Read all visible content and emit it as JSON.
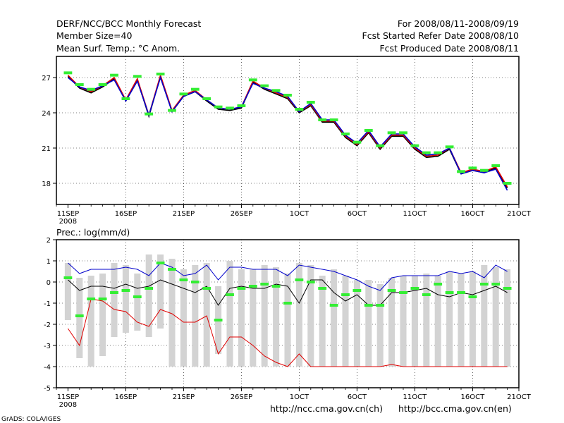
{
  "header": {
    "left": [
      "DERF/NCC/BCC Monthly Forecast",
      "Member Size=40",
      "Mean Surf. Temp.: °C Anom."
    ],
    "right": [
      "For 2008/08/11-2008/09/19",
      "Fcst Started Refer Date 2008/08/10",
      "Fcst Produced Date 2008/08/11"
    ]
  },
  "footer": {
    "credit": "GrADS: COLA/IGES",
    "url_ncc": "http://ncc.cma.gov.cn(ch)",
    "url_bcc": "http://bcc.cma.gov.cn(en)"
  },
  "colors": {
    "black": "#000000",
    "red": "#e00000",
    "blue": "#0000cc",
    "green": "#33ee33",
    "bar": "#d3d3d3"
  },
  "chart_data": [
    {
      "type": "line",
      "title": "Mean Surf. Temp.: °C Anom.",
      "xlabel": "",
      "ylabel": "",
      "x_tick_labels": [
        "11SEP",
        "16SEP",
        "21SEP",
        "26SEP",
        "1OCT",
        "6OCT",
        "11OCT",
        "16OCT",
        "21OCT"
      ],
      "x_tick_sublabel": "2008",
      "x_range": [
        0,
        40
      ],
      "ylim": [
        16.2,
        28.8
      ],
      "y_ticks": [
        18,
        21,
        24,
        27
      ],
      "grid": true,
      "x": [
        1,
        2,
        3,
        4,
        5,
        6,
        7,
        8,
        9,
        10,
        11,
        12,
        13,
        14,
        15,
        16,
        17,
        18,
        19,
        20,
        21,
        22,
        23,
        24,
        25,
        26,
        27,
        28,
        29,
        30,
        31,
        32,
        33,
        34,
        35,
        36,
        37,
        38,
        39
      ],
      "series": [
        {
          "name": "ensemble mean",
          "color": "black",
          "values": [
            27.1,
            26.1,
            25.7,
            26.2,
            26.9,
            25.0,
            26.8,
            23.7,
            27.1,
            24.1,
            25.4,
            25.8,
            25.0,
            24.3,
            24.2,
            24.4,
            26.6,
            26.0,
            25.6,
            25.2,
            24.0,
            24.6,
            23.2,
            23.2,
            21.9,
            21.2,
            22.3,
            20.9,
            22.0,
            22.0,
            20.9,
            20.2,
            20.3,
            20.9,
            18.8,
            19.1,
            18.9,
            19.3,
            17.6
          ]
        },
        {
          "name": "red member",
          "color": "red",
          "values": [
            27.2,
            26.2,
            25.8,
            26.3,
            27.0,
            25.1,
            26.9,
            23.8,
            27.2,
            24.2,
            25.5,
            25.9,
            25.1,
            24.4,
            24.3,
            24.5,
            26.7,
            26.1,
            25.7,
            25.3,
            24.1,
            24.7,
            23.3,
            23.3,
            22.0,
            21.3,
            22.4,
            21.0,
            22.1,
            22.1,
            21.0,
            20.3,
            20.4,
            21.0,
            18.9,
            19.2,
            19.0,
            19.4,
            17.7
          ]
        },
        {
          "name": "blue member",
          "color": "blue",
          "values": [
            27.0,
            26.2,
            25.9,
            26.3,
            26.8,
            25.0,
            26.7,
            23.8,
            27.0,
            24.1,
            25.4,
            25.8,
            25.1,
            24.4,
            24.3,
            24.5,
            26.5,
            26.1,
            25.8,
            25.4,
            24.1,
            24.8,
            23.4,
            23.4,
            22.1,
            21.4,
            22.5,
            21.1,
            22.2,
            22.2,
            21.1,
            20.4,
            20.5,
            21.0,
            18.8,
            19.1,
            18.9,
            19.2,
            17.4
          ]
        }
      ],
      "markers": {
        "name": "observed",
        "color": "green",
        "values": [
          27.4,
          26.4,
          26.0,
          26.4,
          27.2,
          25.2,
          27.1,
          23.9,
          27.3,
          24.2,
          25.6,
          26.0,
          25.2,
          24.5,
          24.4,
          24.6,
          26.8,
          26.3,
          25.9,
          25.5,
          24.3,
          24.9,
          23.4,
          23.4,
          22.2,
          21.5,
          22.5,
          21.2,
          22.3,
          22.3,
          21.2,
          20.6,
          20.6,
          21.1,
          19.0,
          19.3,
          19.1,
          19.5,
          18.0
        ]
      }
    },
    {
      "type": "bar",
      "title": "Prec.: log(mm/d)",
      "xlabel": "",
      "ylabel": "",
      "x_tick_labels": [
        "11SEP",
        "16SEP",
        "21SEP",
        "26SEP",
        "1OCT",
        "6OCT",
        "11OCT",
        "16OCT",
        "21OCT"
      ],
      "x_tick_sublabel": "2008",
      "x_range": [
        0,
        40
      ],
      "ylim": [
        -5,
        2
      ],
      "y_ticks": [
        -5,
        -4,
        -3,
        -2,
        -1,
        0,
        1,
        2
      ],
      "grid": true,
      "x": [
        1,
        2,
        3,
        4,
        5,
        6,
        7,
        8,
        9,
        10,
        11,
        12,
        13,
        14,
        15,
        16,
        17,
        18,
        19,
        20,
        21,
        22,
        23,
        24,
        25,
        26,
        27,
        28,
        29,
        30,
        31,
        32,
        33,
        34,
        35,
        36,
        37,
        38,
        39
      ],
      "bars": {
        "name": "ensemble spread",
        "low": [
          -1.8,
          -3.6,
          -4.0,
          -3.5,
          -2.6,
          -2.4,
          -2.3,
          -2.6,
          -2.2,
          -4.0,
          -4.0,
          -4.0,
          -4.0,
          -3.4,
          -4.0,
          -4.0,
          -4.0,
          -4.0,
          -4.0,
          -4.0,
          -4.0,
          -4.0,
          -4.0,
          -4.0,
          -4.0,
          -4.0,
          -4.0,
          -4.0,
          -4.0,
          -4.0,
          -4.0,
          -4.0,
          -4.0,
          -4.0,
          -4.0,
          -4.0,
          -4.0,
          -4.0,
          -4.0
        ],
        "high": [
          0.9,
          0.2,
          0.3,
          0.4,
          0.9,
          0.8,
          0.4,
          1.3,
          1.3,
          1.1,
          0.6,
          0.8,
          0.9,
          -0.2,
          1.0,
          0.6,
          0.6,
          0.8,
          0.7,
          0.4,
          0.9,
          0.8,
          0.3,
          0.6,
          0.3,
          0.1,
          0.1,
          -0.1,
          0.2,
          0.3,
          0.3,
          0.4,
          0.3,
          0.5,
          0.4,
          0.5,
          0.8,
          0.7,
          0.6
        ]
      },
      "series": [
        {
          "name": "ensemble mean",
          "color": "black",
          "values": [
            0.1,
            -0.4,
            -0.2,
            -0.2,
            -0.3,
            -0.1,
            -0.3,
            -0.2,
            0.1,
            -0.1,
            -0.3,
            -0.5,
            -0.2,
            -1.1,
            -0.3,
            -0.2,
            -0.3,
            -0.3,
            -0.1,
            -0.2,
            -1.0,
            0.1,
            0.1,
            -0.5,
            -0.9,
            -0.6,
            -1.1,
            -1.1,
            -0.5,
            -0.5,
            -0.4,
            -0.3,
            -0.6,
            -0.7,
            -0.5,
            -0.6,
            -0.4,
            -0.2,
            -0.5
          ]
        },
        {
          "name": "blue member",
          "color": "blue",
          "values": [
            0.9,
            0.4,
            0.6,
            0.6,
            0.6,
            0.7,
            0.6,
            0.3,
            0.9,
            0.7,
            0.3,
            0.4,
            0.8,
            0.1,
            0.7,
            0.7,
            0.6,
            0.6,
            0.6,
            0.3,
            0.8,
            0.7,
            0.6,
            0.5,
            0.3,
            0.1,
            -0.2,
            -0.4,
            0.2,
            0.3,
            0.3,
            0.3,
            0.3,
            0.5,
            0.4,
            0.5,
            0.2,
            0.8,
            0.5
          ]
        },
        {
          "name": "red member",
          "color": "red",
          "values": [
            -2.2,
            -3.0,
            -0.8,
            -0.9,
            -1.3,
            -1.4,
            -1.9,
            -2.1,
            -1.3,
            -1.5,
            -1.9,
            -1.9,
            -1.6,
            -3.4,
            -2.6,
            -2.6,
            -3.0,
            -3.5,
            -3.8,
            -4.0,
            -3.4,
            -4.0,
            -4.0,
            -4.0,
            -4.0,
            -4.0,
            -4.0,
            -4.0,
            -3.9,
            -4.0,
            -4.0,
            -4.0,
            -4.0,
            -4.0,
            -4.0,
            -4.0,
            -4.0,
            -4.0,
            -4.0
          ]
        }
      ],
      "markers": {
        "name": "observed",
        "color": "green",
        "values": [
          0.2,
          -1.6,
          -0.8,
          -0.8,
          -0.5,
          -0.4,
          -0.7,
          -0.3,
          0.9,
          0.6,
          0.1,
          0.0,
          -0.3,
          -1.8,
          -0.6,
          -0.3,
          -0.2,
          -0.1,
          -0.2,
          -1.0,
          0.1,
          0.0,
          -0.3,
          -1.1,
          -0.6,
          -0.4,
          -1.1,
          -1.1,
          -0.4,
          -0.5,
          -0.3,
          -0.6,
          -0.1,
          -0.5,
          -0.5,
          -0.7,
          -0.1,
          -0.1,
          -0.3
        ]
      }
    }
  ]
}
